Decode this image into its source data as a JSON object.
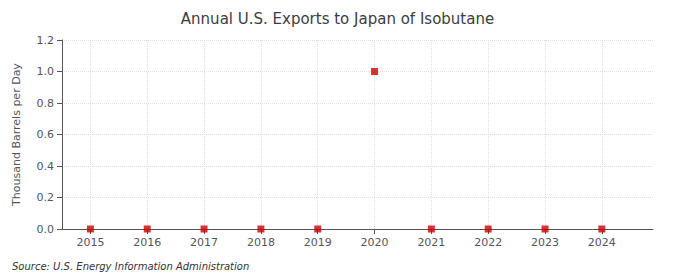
{
  "chart_data": {
    "type": "scatter",
    "title": "Annual U.S. Exports to Japan of Isobutane",
    "ylabel": "Thousand Barrels per Day",
    "source": "Source: U.S. Energy Information Administration",
    "x": [
      2015,
      2016,
      2017,
      2018,
      2019,
      2020,
      2021,
      2022,
      2023,
      2024
    ],
    "values": [
      0.0,
      0.0,
      0.0,
      0.0,
      0.0,
      1.0,
      0.0,
      0.0,
      0.0,
      0.0
    ],
    "color": "#cc0000",
    "marker": "square",
    "xlim": [
      2014.5,
      2024.9
    ],
    "xticks": [
      2015,
      2016,
      2017,
      2018,
      2019,
      2020,
      2021,
      2022,
      2023,
      2024
    ],
    "ylim": [
      0.0,
      1.2
    ],
    "yticks": [
      {
        "value": 0,
        "label": "0.0"
      },
      0.2,
      0.4,
      0.6,
      0.8,
      {
        "value": 1,
        "label": "1.0"
      },
      1.2
    ],
    "grid": true
  }
}
